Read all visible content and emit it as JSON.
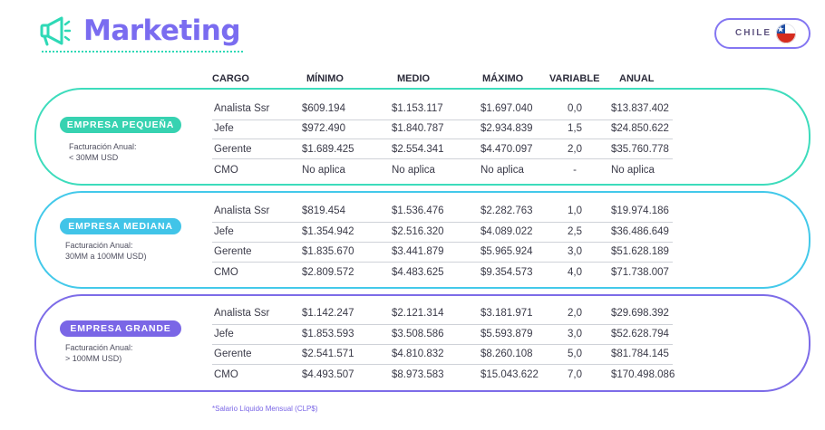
{
  "title": "Marketing",
  "country": {
    "label": "CHILE",
    "flag_icon": "chile-flag-icon"
  },
  "colors": {
    "accent": "#7a6cf0",
    "small": "#37d2b1",
    "medium": "#41c4e8",
    "large": "#7a66e6"
  },
  "columns": [
    "CARGO",
    "MÍNIMO",
    "MEDIO",
    "MÁXIMO",
    "VARIABLE",
    "ANUAL"
  ],
  "sections": [
    {
      "badge": "EMPRESA PEQUEÑA",
      "revenue_line1": "Facturación Anual:",
      "revenue_line2": "< 30MM USD",
      "rows": [
        {
          "cargo": "Analista Ssr",
          "minimo": "$609.194",
          "medio": "$1.153.117",
          "maximo": "$1.697.040",
          "variable": "0,0",
          "anual": "$13.837.402"
        },
        {
          "cargo": "Jefe",
          "minimo": "$972.490",
          "medio": "$1.840.787",
          "maximo": "$2.934.839",
          "variable": "1,5",
          "anual": "$24.850.622"
        },
        {
          "cargo": "Gerente",
          "minimo": "$1.689.425",
          "medio": "$2.554.341",
          "maximo": "$4.470.097",
          "variable": "2,0",
          "anual": "$35.760.778"
        },
        {
          "cargo": "CMO",
          "minimo": "No aplica",
          "medio": "No aplica",
          "maximo": "No aplica",
          "variable": "-",
          "anual": "No aplica"
        }
      ]
    },
    {
      "badge": "EMPRESA MEDIANA",
      "revenue_line1": "Facturación Anual:",
      "revenue_line2": "30MM a 100MM USD)",
      "rows": [
        {
          "cargo": "Analista Ssr",
          "minimo": "$819.454",
          "medio": "$1.536.476",
          "maximo": "$2.282.763",
          "variable": "1,0",
          "anual": "$19.974.186"
        },
        {
          "cargo": "Jefe",
          "minimo": "$1.354.942",
          "medio": "$2.516.320",
          "maximo": "$4.089.022",
          "variable": "2,5",
          "anual": "$36.486.649"
        },
        {
          "cargo": "Gerente",
          "minimo": "$1.835.670",
          "medio": "$3.441.879",
          "maximo": "$5.965.924",
          "variable": "3,0",
          "anual": "$51.628.189"
        },
        {
          "cargo": "CMO",
          "minimo": "$2.809.572",
          "medio": "$4.483.625",
          "maximo": "$9.354.573",
          "variable": "4,0",
          "anual": "$71.738.007"
        }
      ]
    },
    {
      "badge": "EMPRESA GRANDE",
      "revenue_line1": "Facturación Anual:",
      "revenue_line2": "> 100MM USD)",
      "rows": [
        {
          "cargo": "Analista Ssr",
          "minimo": "$1.142.247",
          "medio": "$2.121.314",
          "maximo": "$3.181.971",
          "variable": "2,0",
          "anual": "$29.698.392"
        },
        {
          "cargo": "Jefe",
          "minimo": "$1.853.593",
          "medio": "$3.508.586",
          "maximo": "$5.593.879",
          "variable": "3,0",
          "anual": "$52.628.794"
        },
        {
          "cargo": "Gerente",
          "minimo": "$2.541.571",
          "medio": "$4.810.832",
          "maximo": "$8.260.108",
          "variable": "5,0",
          "anual": "$81.784.145"
        },
        {
          "cargo": "CMO",
          "minimo": "$4.493.507",
          "medio": "$8.973.583",
          "maximo": "$15.043.622",
          "variable": "7,0",
          "anual": "$170.498.086"
        }
      ]
    }
  ],
  "footnote": "*Salario Líquido Mensual (CLP$)"
}
